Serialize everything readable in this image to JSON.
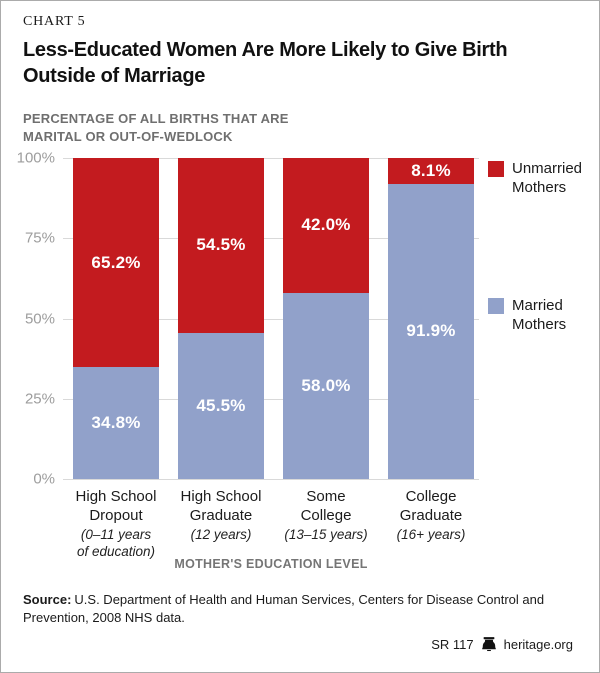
{
  "header": {
    "kicker": "CHART 5",
    "title": "Less-Educated Women Are More Likely to Give Birth\nOutside of Marriage",
    "subtitle": "PERCENTAGE OF ALL BIRTHS THAT ARE\nMARITAL OR OUT-OF-WEDLOCK"
  },
  "chart_data": {
    "type": "bar",
    "stacked": true,
    "title": "Less-Educated Women Are More Likely to Give Birth Outside of Marriage",
    "subtitle": "Percentage of all births that are marital or out-of-wedlock",
    "categories": [
      {
        "label": "High School\nDropout",
        "sublabel": "(0–11 years\nof education)"
      },
      {
        "label": "High School\nGraduate",
        "sublabel": "(12 years)"
      },
      {
        "label": "Some\nCollege",
        "sublabel": "(13–15 years)"
      },
      {
        "label": "College\nGraduate",
        "sublabel": "(16+ years)"
      }
    ],
    "series": [
      {
        "key": "unmarried",
        "name": "Unmarried Mothers",
        "color": "#c31b1f",
        "values": [
          65.2,
          54.5,
          42.0,
          8.1
        ],
        "labels": [
          "65.2%",
          "54.5%",
          "42.0%",
          "8.1%"
        ]
      },
      {
        "key": "married",
        "name": "Married Mothers",
        "color": "#91a1ca",
        "values": [
          34.8,
          45.5,
          58.0,
          91.9
        ],
        "labels": [
          "34.8%",
          "45.5%",
          "58.0%",
          "91.9%"
        ]
      }
    ],
    "y_ticks": [
      "100%",
      "75%",
      "50%",
      "25%",
      "0%"
    ],
    "ylim": [
      0,
      100
    ],
    "xlabel": "MOTHER'S EDUCATION LEVEL",
    "ylabel": "",
    "grid": true,
    "legend_position": "right"
  },
  "footer": {
    "source_label": "Source:",
    "source_text": "U.S. Department of Health and Human Services, Centers for Disease Control and Prevention, 2008 NHS data.",
    "report_id": "SR 117",
    "site": "heritage.org"
  },
  "colors": {
    "unmarried_red": "#c31b1f",
    "married_blue": "#91a1ca",
    "gridline": "#d9d9d9",
    "tick_label": "#9d9d9d",
    "muted_heading": "#6f6f6f"
  }
}
